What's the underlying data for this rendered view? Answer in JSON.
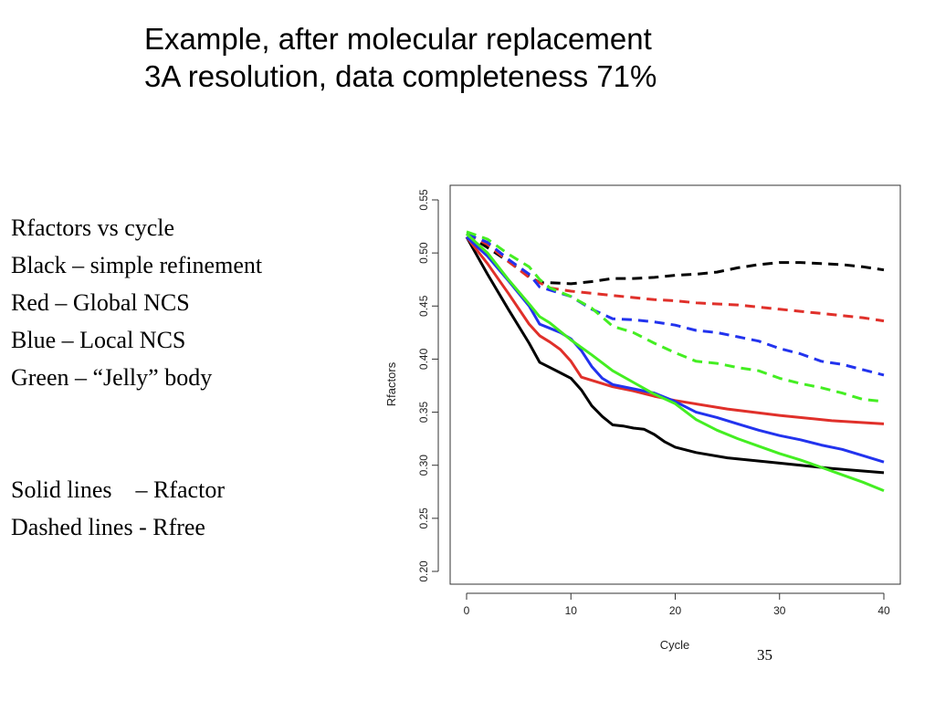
{
  "slide": {
    "title_line1": "Example, after molecular replacement",
    "title_line2": "3A resolution, data completeness 71%",
    "legend_lines": [
      "Rfactors vs cycle",
      "Black – simple refinement",
      "Red – Global NCS",
      "Blue – Local NCS",
      "Green – “Jelly” body"
    ],
    "note_lines": [
      "Solid lines    – Rfactor",
      "Dashed lines - Rfree"
    ],
    "slide_number": "35"
  },
  "chart_data": {
    "type": "line",
    "xlabel": "Cycle",
    "ylabel": "Rfactors",
    "xlim": [
      0,
      40
    ],
    "ylim": [
      0.2,
      0.55
    ],
    "xticks": [
      "0",
      "10",
      "20",
      "30",
      "40"
    ],
    "yticks": [
      "0.20",
      "0.25",
      "0.30",
      "0.35",
      "0.40",
      "0.45",
      "0.50",
      "0.55"
    ],
    "grid": false,
    "series": [
      {
        "color": "#000000",
        "dashed": false,
        "x": [
          0,
          2,
          4,
          6,
          7,
          8,
          9,
          10,
          11,
          12,
          13,
          14,
          15,
          16,
          17,
          18,
          19,
          20,
          22,
          25,
          30,
          35,
          40
        ],
        "y": [
          0.515,
          0.48,
          0.447,
          0.415,
          0.397,
          0.392,
          0.387,
          0.382,
          0.371,
          0.356,
          0.346,
          0.338,
          0.337,
          0.335,
          0.334,
          0.329,
          0.322,
          0.317,
          0.312,
          0.307,
          0.302,
          0.297,
          0.293
        ]
      },
      {
        "color": "#000000",
        "dashed": true,
        "x": [
          0,
          2,
          4,
          6,
          7,
          8,
          10,
          12,
          14,
          16,
          18,
          20,
          22,
          24,
          26,
          28,
          30,
          32,
          34,
          36,
          38,
          40
        ],
        "y": [
          0.518,
          0.505,
          0.492,
          0.478,
          0.472,
          0.472,
          0.471,
          0.473,
          0.476,
          0.476,
          0.477,
          0.479,
          0.48,
          0.482,
          0.486,
          0.489,
          0.491,
          0.491,
          0.49,
          0.489,
          0.487,
          0.484
        ]
      },
      {
        "color": "#e0302a",
        "dashed": false,
        "x": [
          0,
          2,
          4,
          6,
          7,
          8,
          9,
          10,
          11,
          12,
          14,
          16,
          18,
          20,
          25,
          30,
          35,
          40
        ],
        "y": [
          0.515,
          0.49,
          0.462,
          0.433,
          0.422,
          0.416,
          0.409,
          0.398,
          0.383,
          0.38,
          0.374,
          0.37,
          0.365,
          0.361,
          0.353,
          0.347,
          0.342,
          0.339
        ]
      },
      {
        "color": "#e0302a",
        "dashed": true,
        "x": [
          0,
          2,
          4,
          6,
          8,
          10,
          12,
          14,
          16,
          18,
          20,
          22,
          24,
          26,
          28,
          30,
          32,
          34,
          36,
          38,
          40
        ],
        "y": [
          0.518,
          0.508,
          0.492,
          0.477,
          0.467,
          0.464,
          0.462,
          0.46,
          0.458,
          0.456,
          0.455,
          0.453,
          0.452,
          0.451,
          0.449,
          0.447,
          0.445,
          0.443,
          0.441,
          0.439,
          0.436
        ]
      },
      {
        "color": "#2233ee",
        "dashed": false,
        "x": [
          0,
          2,
          4,
          6,
          7,
          8,
          9,
          10,
          11,
          12,
          13,
          14,
          16,
          18,
          20,
          22,
          24,
          26,
          28,
          30,
          32,
          34,
          36,
          38,
          40
        ],
        "y": [
          0.515,
          0.497,
          0.474,
          0.45,
          0.433,
          0.429,
          0.425,
          0.419,
          0.408,
          0.393,
          0.382,
          0.376,
          0.372,
          0.368,
          0.36,
          0.35,
          0.345,
          0.339,
          0.333,
          0.328,
          0.324,
          0.319,
          0.315,
          0.309,
          0.303
        ]
      },
      {
        "color": "#2233ee",
        "dashed": true,
        "x": [
          0,
          2,
          4,
          6,
          7,
          8,
          10,
          12,
          14,
          16,
          18,
          20,
          22,
          24,
          26,
          28,
          30,
          32,
          34,
          36,
          38,
          40
        ],
        "y": [
          0.518,
          0.51,
          0.494,
          0.48,
          0.468,
          0.465,
          0.459,
          0.447,
          0.438,
          0.437,
          0.435,
          0.432,
          0.427,
          0.425,
          0.421,
          0.417,
          0.41,
          0.405,
          0.398,
          0.395,
          0.39,
          0.385
        ]
      },
      {
        "color": "#44ee22",
        "dashed": false,
        "x": [
          0,
          2,
          4,
          6,
          7,
          8,
          10,
          12,
          14,
          16,
          18,
          20,
          22,
          24,
          26,
          28,
          30,
          32,
          34,
          36,
          38,
          40
        ],
        "y": [
          0.518,
          0.5,
          0.475,
          0.452,
          0.44,
          0.434,
          0.418,
          0.404,
          0.389,
          0.378,
          0.367,
          0.358,
          0.343,
          0.333,
          0.325,
          0.318,
          0.311,
          0.305,
          0.298,
          0.291,
          0.284,
          0.276
        ]
      },
      {
        "color": "#44ee22",
        "dashed": true,
        "x": [
          0,
          2,
          4,
          6,
          7,
          8,
          10,
          12,
          14,
          16,
          18,
          20,
          22,
          24,
          26,
          28,
          30,
          32,
          34,
          36,
          38,
          40
        ],
        "y": [
          0.52,
          0.513,
          0.499,
          0.487,
          0.475,
          0.467,
          0.459,
          0.448,
          0.431,
          0.425,
          0.415,
          0.406,
          0.398,
          0.396,
          0.392,
          0.389,
          0.382,
          0.377,
          0.373,
          0.368,
          0.362,
          0.36
        ]
      }
    ]
  }
}
